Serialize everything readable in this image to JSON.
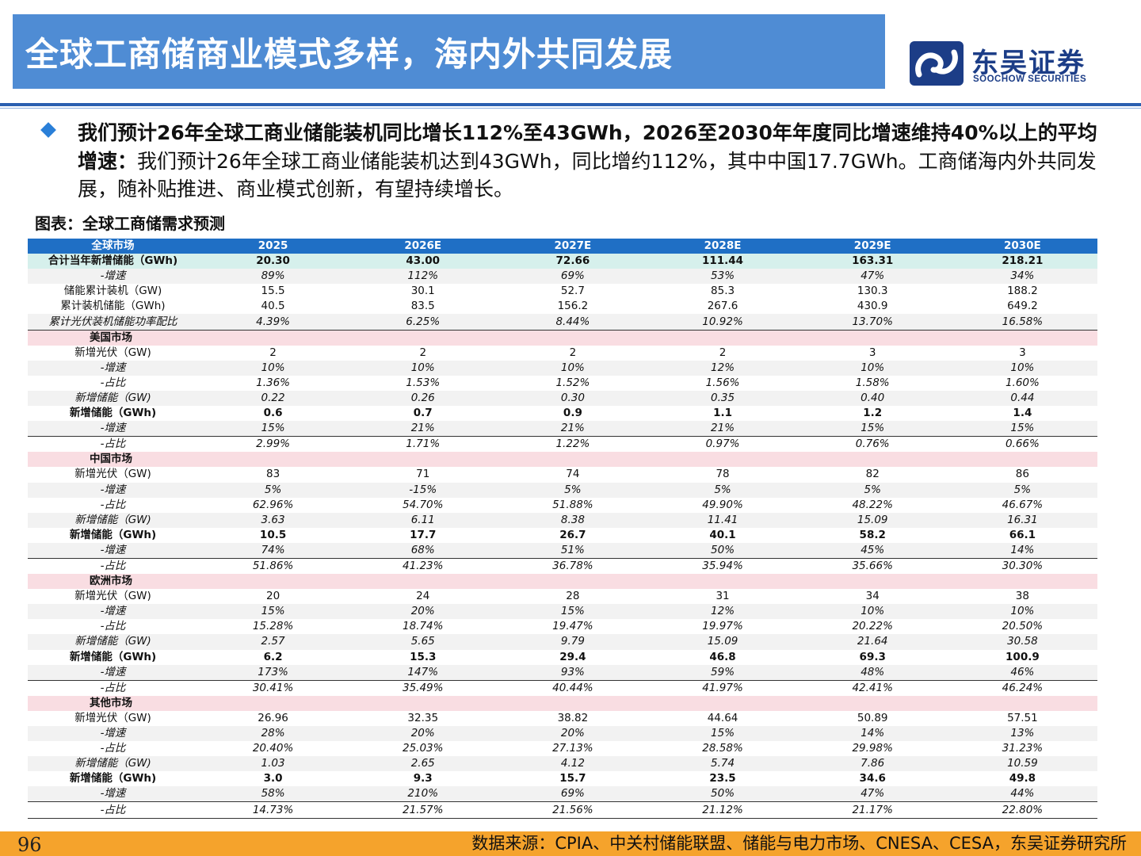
{
  "header": {
    "title": "全球工商储商业模式多样，海内外共同发展",
    "logo_cn": "东吴证券",
    "logo_en": "SOOCHOW SECURITIES",
    "colors": {
      "title_bg": "#4f8cd4",
      "logo": "#1c3d87",
      "rule": "#2a5fb0"
    }
  },
  "bullet": {
    "icon": "diamond-bullet-icon",
    "bold_text": "我们预计26年全球工商业储能装机同比增长112%至43GWh，2026至2030年年度同比增速维持40%以上的平均增速：",
    "normal_text": "我们预计26年全球工商业储能装机达到43GWh，同比增约112%，其中中国17.7GWh。工商储海内外共同发展，随补贴推进、商业模式创新，有望持续增长。"
  },
  "figure": {
    "title": "图表：全球工商储需求预测"
  },
  "table": {
    "header": [
      "全球市场",
      "2025",
      "2026E",
      "2027E",
      "2028E",
      "2029E",
      "2030E"
    ],
    "rows": [
      {
        "style": "total",
        "cells": [
          "合计当年新增储能（GWh)",
          "20.30",
          "43.00",
          "72.66",
          "111.44",
          "163.31",
          "218.21"
        ]
      },
      {
        "style": "alt italic",
        "cells": [
          "-增速",
          "89%",
          "112%",
          "69%",
          "53%",
          "47%",
          "34%"
        ]
      },
      {
        "style": "",
        "cells": [
          "储能累计装机（GW)",
          "15.5",
          "30.1",
          "52.7",
          "85.3",
          "130.3",
          "188.2"
        ]
      },
      {
        "style": "",
        "cells": [
          "累计装机储能（GWh)",
          "40.5",
          "83.5",
          "156.2",
          "267.6",
          "430.9",
          "649.2"
        ]
      },
      {
        "style": "alt italic line",
        "cells": [
          "累计光伏装机储能功率配比",
          "4.39%",
          "6.25%",
          "8.44%",
          "10.92%",
          "13.70%",
          "16.58%"
        ]
      },
      {
        "style": "section",
        "cells": [
          "美国市场",
          "",
          "",
          "",
          "",
          "",
          ""
        ]
      },
      {
        "style": "",
        "cells": [
          "新增光伏（GW)",
          "2",
          "2",
          "2",
          "2",
          "3",
          "3"
        ]
      },
      {
        "style": "alt italic",
        "cells": [
          "-增速",
          "10%",
          "10%",
          "10%",
          "12%",
          "10%",
          "10%"
        ]
      },
      {
        "style": "italic",
        "cells": [
          "-占比",
          "1.36%",
          "1.53%",
          "1.52%",
          "1.56%",
          "1.58%",
          "1.60%"
        ]
      },
      {
        "style": "alt italic",
        "cells": [
          "新增储能（GW)",
          "0.22",
          "0.26",
          "0.30",
          "0.35",
          "0.40",
          "0.44"
        ]
      },
      {
        "style": "bold",
        "cells": [
          "新增储能（GWh)",
          "0.6",
          "0.7",
          "0.9",
          "1.1",
          "1.2",
          "1.4"
        ]
      },
      {
        "style": "alt italic line",
        "cells": [
          "-增速",
          "15%",
          "21%",
          "21%",
          "21%",
          "15%",
          "15%"
        ]
      },
      {
        "style": "italic",
        "cells": [
          "-占比",
          "2.99%",
          "1.71%",
          "1.22%",
          "0.97%",
          "0.76%",
          "0.66%"
        ]
      },
      {
        "style": "section",
        "cells": [
          "中国市场",
          "",
          "",
          "",
          "",
          "",
          ""
        ]
      },
      {
        "style": "",
        "cells": [
          "新增光伏（GW)",
          "83",
          "71",
          "74",
          "78",
          "82",
          "86"
        ]
      },
      {
        "style": "alt italic",
        "cells": [
          "-增速",
          "5%",
          "-15%",
          "5%",
          "5%",
          "5%",
          "5%"
        ]
      },
      {
        "style": "italic",
        "cells": [
          "-占比",
          "62.96%",
          "54.70%",
          "51.88%",
          "49.90%",
          "48.22%",
          "46.67%"
        ]
      },
      {
        "style": "alt italic",
        "cells": [
          "新增储能（GW)",
          "3.63",
          "6.11",
          "8.38",
          "11.41",
          "15.09",
          "16.31"
        ]
      },
      {
        "style": "bold",
        "cells": [
          "新增储能（GWh)",
          "10.5",
          "17.7",
          "26.7",
          "40.1",
          "58.2",
          "66.1"
        ]
      },
      {
        "style": "alt italic line",
        "cells": [
          "-增速",
          "74%",
          "68%",
          "51%",
          "50%",
          "45%",
          "14%"
        ]
      },
      {
        "style": "italic",
        "cells": [
          "-占比",
          "51.86%",
          "41.23%",
          "36.78%",
          "35.94%",
          "35.66%",
          "30.30%"
        ]
      },
      {
        "style": "section",
        "cells": [
          "欧洲市场",
          "",
          "",
          "",
          "",
          "",
          ""
        ]
      },
      {
        "style": "",
        "cells": [
          "新增光伏（GW)",
          "20",
          "24",
          "28",
          "31",
          "34",
          "38"
        ]
      },
      {
        "style": "alt italic",
        "cells": [
          "-增速",
          "15%",
          "20%",
          "15%",
          "12%",
          "10%",
          "10%"
        ]
      },
      {
        "style": "italic",
        "cells": [
          "-占比",
          "15.28%",
          "18.74%",
          "19.47%",
          "19.97%",
          "20.22%",
          "20.50%"
        ]
      },
      {
        "style": "alt italic",
        "cells": [
          "新增储能（GW)",
          "2.57",
          "5.65",
          "9.79",
          "15.09",
          "21.64",
          "30.58"
        ]
      },
      {
        "style": "bold",
        "cells": [
          "新增储能（GWh)",
          "6.2",
          "15.3",
          "29.4",
          "46.8",
          "69.3",
          "100.9"
        ]
      },
      {
        "style": "alt italic line",
        "cells": [
          "-增速",
          "173%",
          "147%",
          "93%",
          "59%",
          "48%",
          "46%"
        ]
      },
      {
        "style": "italic",
        "cells": [
          "-占比",
          "30.41%",
          "35.49%",
          "40.44%",
          "41.97%",
          "42.41%",
          "46.24%"
        ]
      },
      {
        "style": "section",
        "cells": [
          "其他市场",
          "",
          "",
          "",
          "",
          "",
          ""
        ]
      },
      {
        "style": "",
        "cells": [
          "新增光伏（GW)",
          "26.96",
          "32.35",
          "38.82",
          "44.64",
          "50.89",
          "57.51"
        ]
      },
      {
        "style": "alt italic",
        "cells": [
          "-增速",
          "28%",
          "20%",
          "20%",
          "15%",
          "14%",
          "13%"
        ]
      },
      {
        "style": "italic",
        "cells": [
          "-占比",
          "20.40%",
          "25.03%",
          "27.13%",
          "28.58%",
          "29.98%",
          "31.23%"
        ]
      },
      {
        "style": "alt italic",
        "cells": [
          "新增储能（GW)",
          "1.03",
          "2.65",
          "4.12",
          "5.74",
          "7.86",
          "10.59"
        ]
      },
      {
        "style": "bold",
        "cells": [
          "新增储能（GWh)",
          "3.0",
          "9.3",
          "15.7",
          "23.5",
          "34.6",
          "49.8"
        ]
      },
      {
        "style": "alt italic line",
        "cells": [
          "-增速",
          "58%",
          "210%",
          "69%",
          "50%",
          "47%",
          "44%"
        ]
      },
      {
        "style": "italic line",
        "cells": [
          "-占比",
          "14.73%",
          "21.57%",
          "21.56%",
          "21.12%",
          "21.17%",
          "22.80%"
        ]
      }
    ]
  },
  "footer": {
    "page": "96",
    "source": "数据来源：CPIA、中关村储能联盟、储能与电力市场、CNESA、CESA，东吴证券研究所",
    "bar_color": "#f5a32c"
  }
}
